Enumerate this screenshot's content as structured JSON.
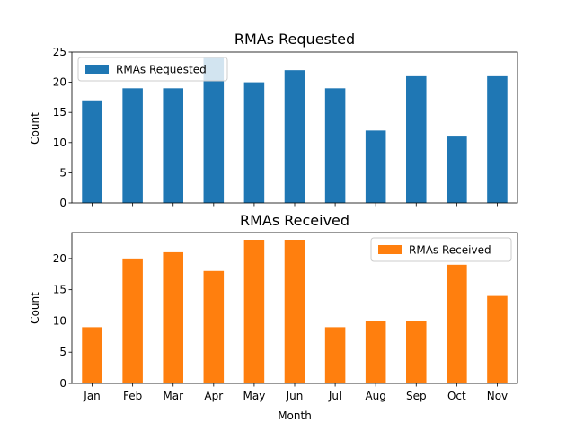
{
  "chart_data": [
    {
      "type": "bar",
      "title": "RMAs Requested",
      "ylabel": "Count",
      "xlabel": "",
      "ylim": [
        0,
        25
      ],
      "yticks": [
        0,
        5,
        10,
        15,
        20,
        25
      ],
      "categories": [
        "Jan",
        "Feb",
        "Mar",
        "Apr",
        "May",
        "Jun",
        "Jul",
        "Aug",
        "Sep",
        "Oct",
        "Nov"
      ],
      "show_xticklabels": false,
      "legend_position": "top-left",
      "series": [
        {
          "name": "RMAs Requested",
          "color": "#1f77b4",
          "values": [
            17,
            19,
            19,
            24,
            20,
            22,
            19,
            12,
            21,
            11,
            21
          ]
        }
      ]
    },
    {
      "type": "bar",
      "title": "RMAs Received",
      "ylabel": "Count",
      "xlabel": "Month",
      "ylim": [
        0,
        24.15
      ],
      "yticks": [
        0,
        5,
        10,
        15,
        20
      ],
      "categories": [
        "Jan",
        "Feb",
        "Mar",
        "Apr",
        "May",
        "Jun",
        "Jul",
        "Aug",
        "Sep",
        "Oct",
        "Nov"
      ],
      "show_xticklabels": true,
      "legend_position": "top-right",
      "series": [
        {
          "name": "RMAs Received",
          "color": "#ff7f0e",
          "values": [
            9,
            20,
            21,
            18,
            23,
            23,
            9,
            10,
            10,
            19,
            14
          ]
        }
      ]
    }
  ]
}
